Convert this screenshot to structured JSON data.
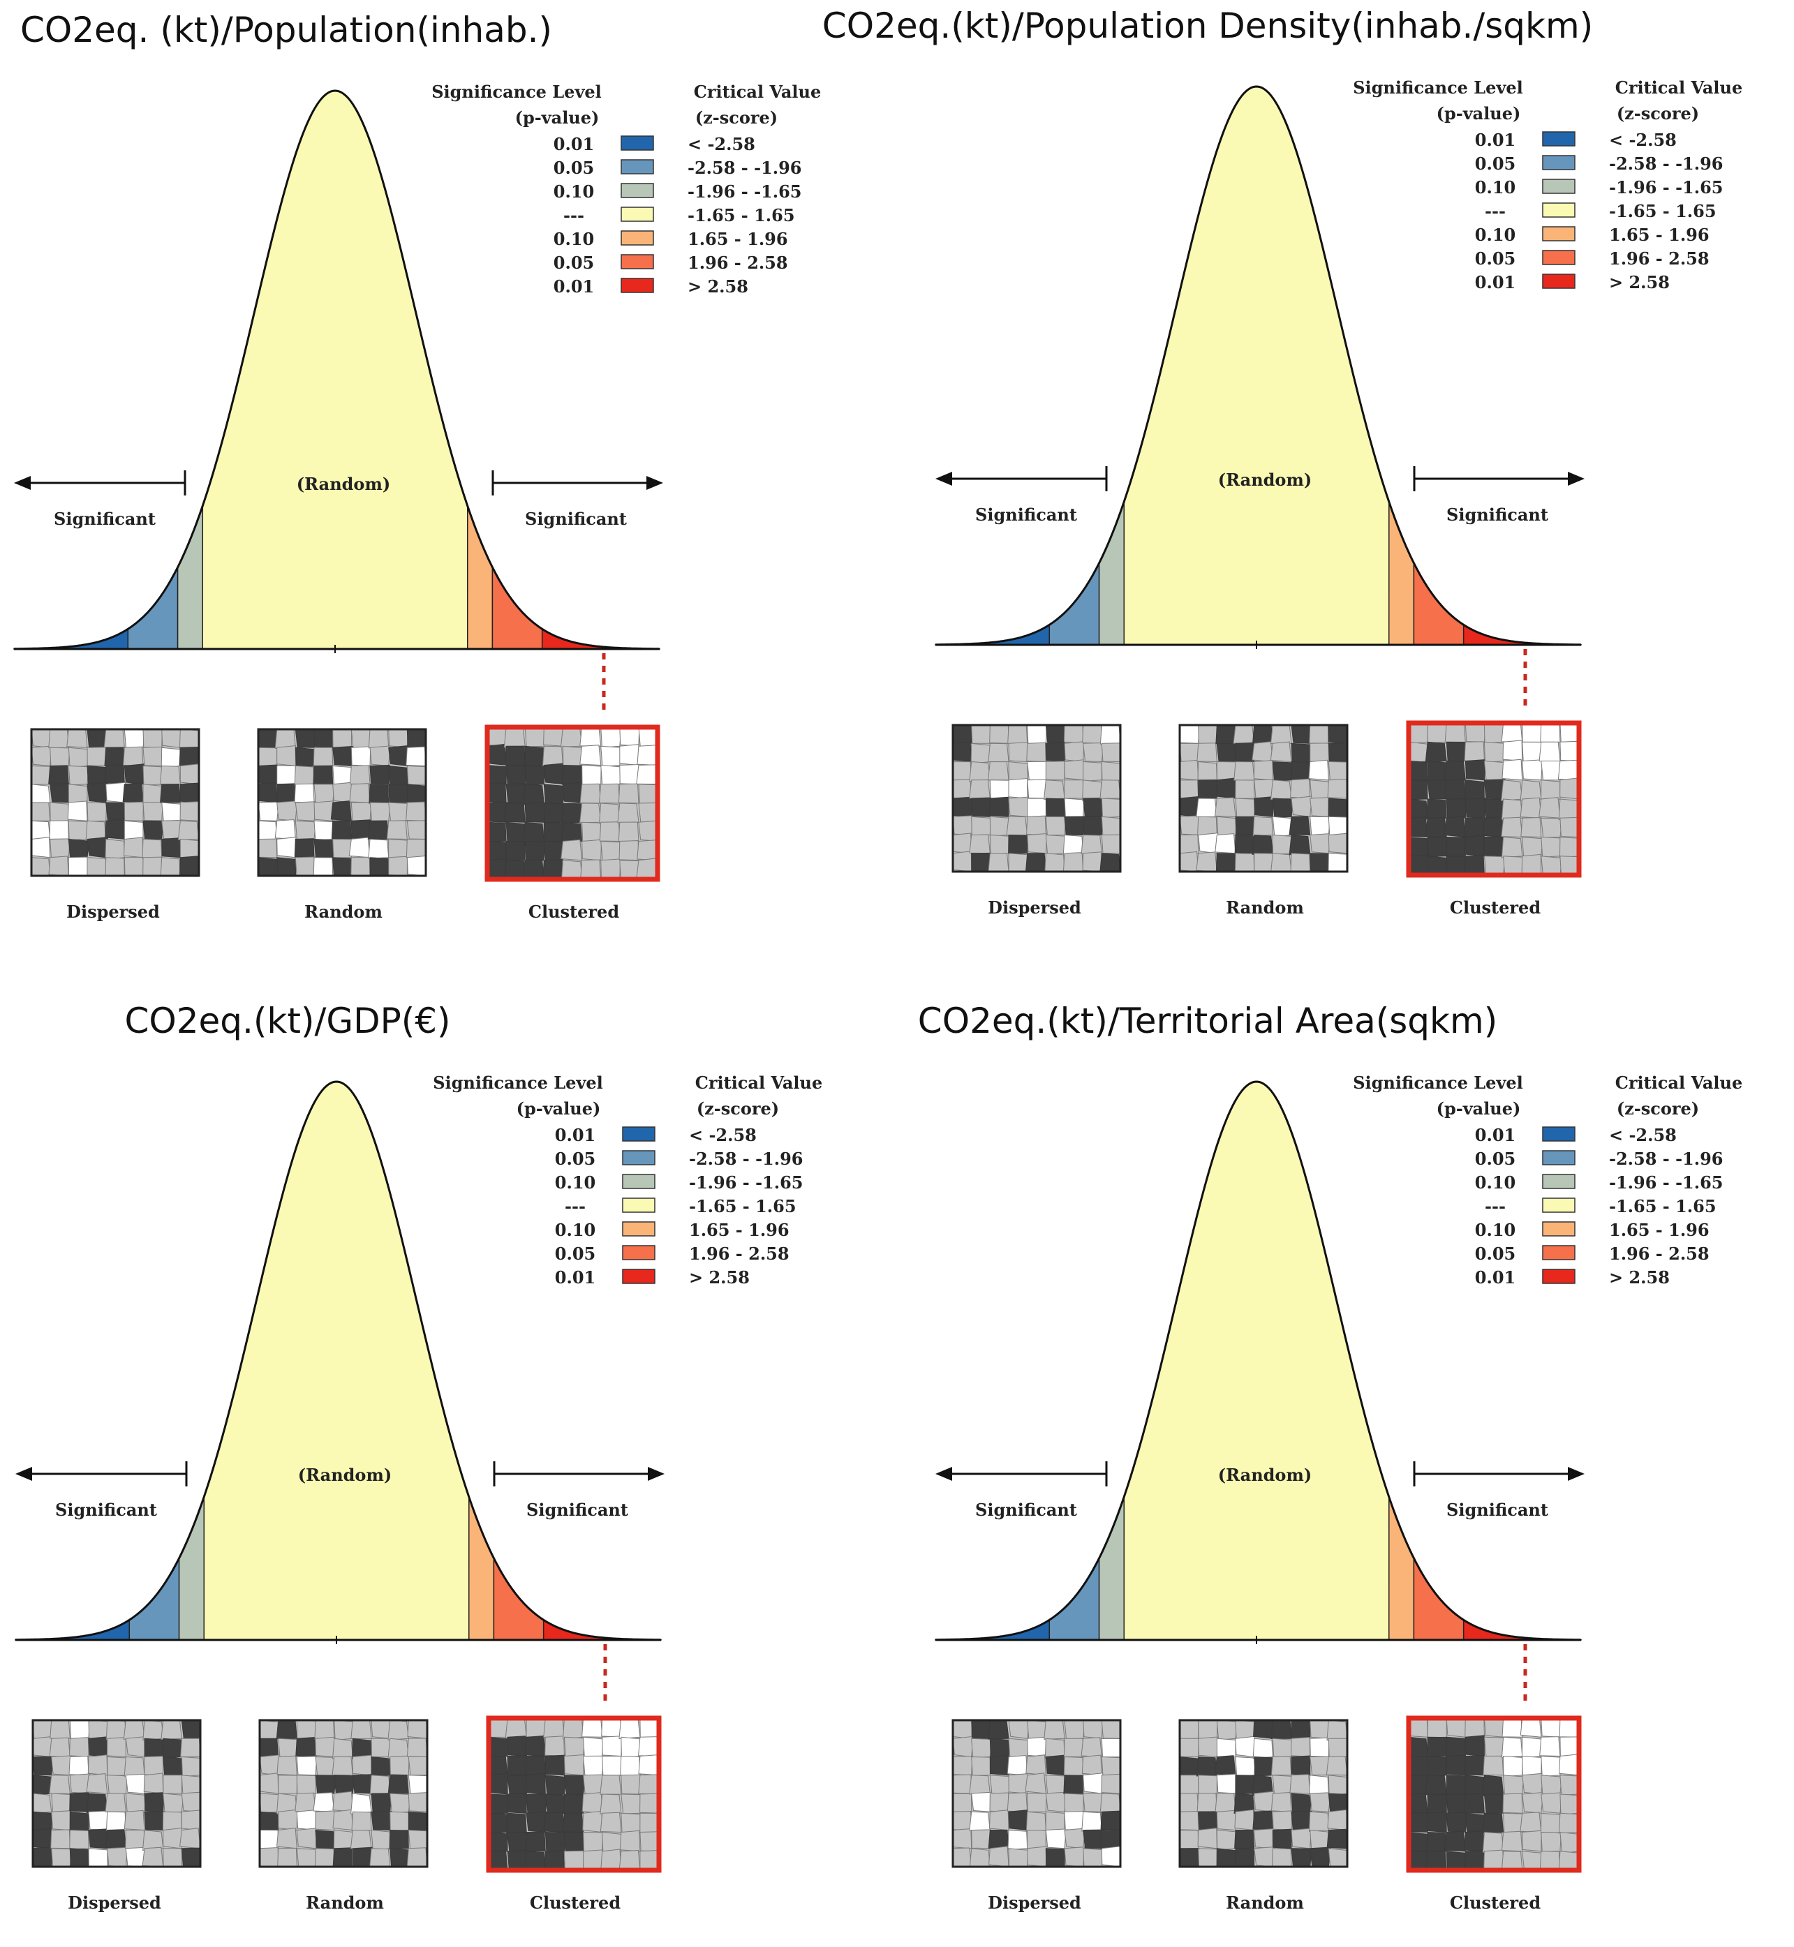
{
  "legend": {
    "significance_header_line1": "Significance Level",
    "significance_header_line2": "(p-value)",
    "critical_header_line1": "Critical Value",
    "critical_header_line2": "(z-score)",
    "rows": [
      {
        "p": "0.01",
        "z": "< -2.58",
        "color": "#2166ac"
      },
      {
        "p": "0.05",
        "z": "-2.58 - -1.96",
        "color": "#6796bd"
      },
      {
        "p": "0.10",
        "z": "-1.96 - -1.65",
        "color": "#b7c6b6"
      },
      {
        "p": "---",
        "z": "-1.65 - 1.65",
        "color": "#fafab4"
      },
      {
        "p": "0.10",
        "z": "1.65 - 1.96",
        "color": "#fbb478"
      },
      {
        "p": "0.05",
        "z": "1.96 - 2.58",
        "color": "#f5704b"
      },
      {
        "p": "0.01",
        "z": "> 2.58",
        "color": "#e8281c"
      }
    ]
  },
  "curve_labels": {
    "random": "(Random)",
    "significant_left": "Significant",
    "significant_right": "Significant"
  },
  "map_labels": [
    "Dispersed",
    "Random",
    "Clustered"
  ],
  "colors": {
    "highlight_border": "#e02a1e",
    "dotted_line": "#c8281e",
    "map_dark": "#3f3f3f",
    "map_light": "#c4c4c4",
    "map_white": "#ffffff"
  },
  "panels": [
    {
      "title": "CO2eq. (kt)/Population(inhab.)"
    },
    {
      "title": "CO2eq.(kt)/Population Density(inhab./sqkm)"
    },
    {
      "title": "CO2eq.(kt)/GDP(€)"
    },
    {
      "title": "CO2eq.(kt)/Territorial Area(sqkm)"
    }
  ]
}
